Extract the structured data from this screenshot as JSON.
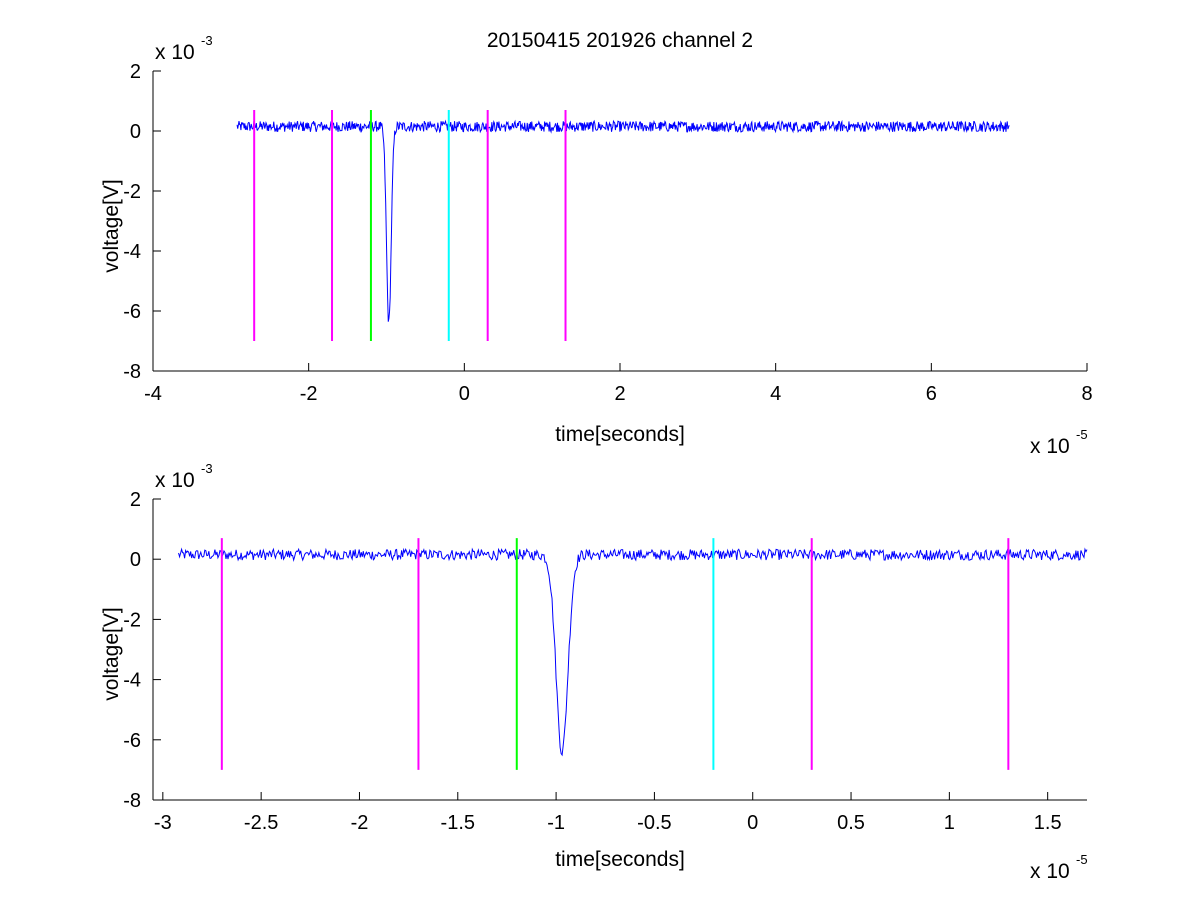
{
  "title": "20150415 201926 channel 2",
  "colors": {
    "signal": "#0000ff",
    "magenta": "#ff00ff",
    "green": "#00ff00",
    "cyan": "#00ffff",
    "axes": "#000000"
  },
  "chart_data": [
    {
      "type": "line",
      "title": "20150415 201926 channel 2",
      "xlabel": "time[seconds]",
      "ylabel": "voltage[V]",
      "x_exponent_label": {
        "base": "x 10",
        "exp": "-5"
      },
      "y_exponent_label": {
        "base": "x 10",
        "exp": "-3"
      },
      "xlim": [
        -4,
        8
      ],
      "ylim": [
        -8,
        2
      ],
      "x_ticks": [
        -4,
        -2,
        0,
        2,
        4,
        6,
        8
      ],
      "x_tick_labels": [
        "-4",
        "-2",
        "0",
        "2",
        "4",
        "6",
        "8"
      ],
      "y_ticks": [
        -8,
        -6,
        -4,
        -2,
        0,
        2
      ],
      "y_tick_labels": [
        "-8",
        "-6",
        "-4",
        "-2",
        "0",
        "2"
      ],
      "series": [
        {
          "role": "signal",
          "color": "#0000ff",
          "x_range": [
            -2.92,
            7.0
          ],
          "baseline": 0.15,
          "noise": 0.18,
          "dip": {
            "x": -0.97,
            "y_min": -6.4
          }
        }
      ],
      "markers": [
        {
          "x": -2.7,
          "color": "#ff00ff",
          "y_from": -7.0,
          "y_to": 0.7
        },
        {
          "x": -1.7,
          "color": "#ff00ff",
          "y_from": -7.0,
          "y_to": 0.7
        },
        {
          "x": -1.2,
          "color": "#00ff00",
          "y_from": -7.0,
          "y_to": 0.7
        },
        {
          "x": -0.2,
          "color": "#00ffff",
          "y_from": -7.0,
          "y_to": 0.7
        },
        {
          "x": 0.3,
          "color": "#ff00ff",
          "y_from": -7.0,
          "y_to": 0.7
        },
        {
          "x": 1.3,
          "color": "#ff00ff",
          "y_from": -7.0,
          "y_to": 0.7
        }
      ]
    },
    {
      "type": "line",
      "title": "",
      "xlabel": "time[seconds]",
      "ylabel": "voltage[V]",
      "x_exponent_label": {
        "base": "x 10",
        "exp": "-5"
      },
      "y_exponent_label": {
        "base": "x 10",
        "exp": "-3"
      },
      "xlim": [
        -3.05,
        1.7
      ],
      "ylim": [
        -8,
        2
      ],
      "x_ticks": [
        -3,
        -2.5,
        -2,
        -1.5,
        -1,
        -0.5,
        0,
        0.5,
        1,
        1.5
      ],
      "x_tick_labels": [
        "-3",
        "-2.5",
        "-2",
        "-1.5",
        "-1",
        "-0.5",
        "0",
        "0.5",
        "1",
        "1.5"
      ],
      "y_ticks": [
        -8,
        -6,
        -4,
        -2,
        0,
        2
      ],
      "y_tick_labels": [
        "-8",
        "-6",
        "-4",
        "-2",
        "0",
        "2"
      ],
      "series": [
        {
          "role": "signal",
          "color": "#0000ff",
          "x_range": [
            -2.92,
            1.7
          ],
          "baseline": 0.15,
          "noise": 0.18,
          "dip": {
            "x": -0.97,
            "y_min": -6.4
          }
        }
      ],
      "markers": [
        {
          "x": -2.7,
          "color": "#ff00ff",
          "y_from": -7.0,
          "y_to": 0.7
        },
        {
          "x": -1.7,
          "color": "#ff00ff",
          "y_from": -7.0,
          "y_to": 0.7
        },
        {
          "x": -1.2,
          "color": "#00ff00",
          "y_from": -7.0,
          "y_to": 0.7
        },
        {
          "x": -0.2,
          "color": "#00ffff",
          "y_from": -7.0,
          "y_to": 0.7
        },
        {
          "x": 0.3,
          "color": "#ff00ff",
          "y_from": -7.0,
          "y_to": 0.7
        },
        {
          "x": 1.3,
          "color": "#ff00ff",
          "y_from": -7.0,
          "y_to": 0.7
        }
      ]
    }
  ]
}
